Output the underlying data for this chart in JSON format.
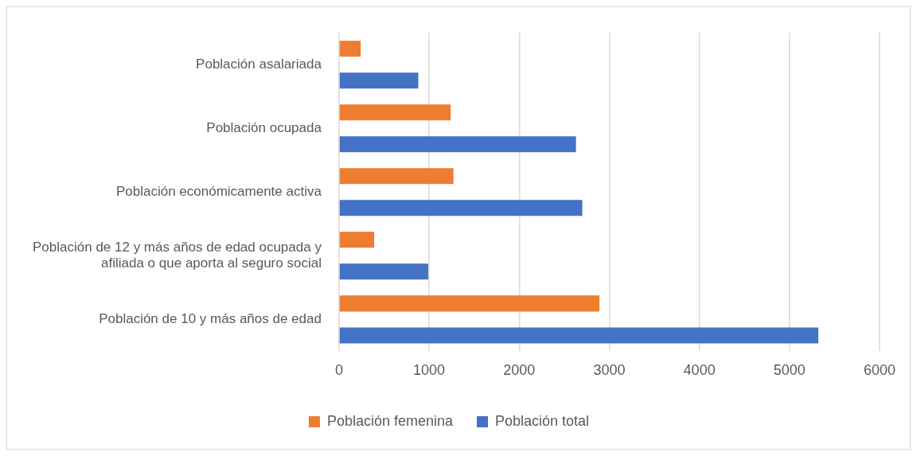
{
  "chart_data": {
    "type": "bar",
    "orientation": "horizontal",
    "categories": [
      "Población asalariada",
      "Población ocupada",
      "Población económicamente activa",
      "Población de 12 y más años de edad ocupada y afiliada o que aporta al seguro social",
      "Población de 10 y más años de edad"
    ],
    "series": [
      {
        "name": "Población femenina",
        "color": "#ed7d31",
        "values": [
          240,
          1240,
          1270,
          390,
          2890
        ]
      },
      {
        "name": "Población total",
        "color": "#4472c4",
        "values": [
          880,
          2630,
          2700,
          990,
          5320
        ]
      }
    ],
    "xlim": [
      0,
      6000
    ],
    "xticks": [
      0,
      1000,
      2000,
      3000,
      4000,
      5000,
      6000
    ],
    "grid": "x",
    "legend": "bottom"
  }
}
